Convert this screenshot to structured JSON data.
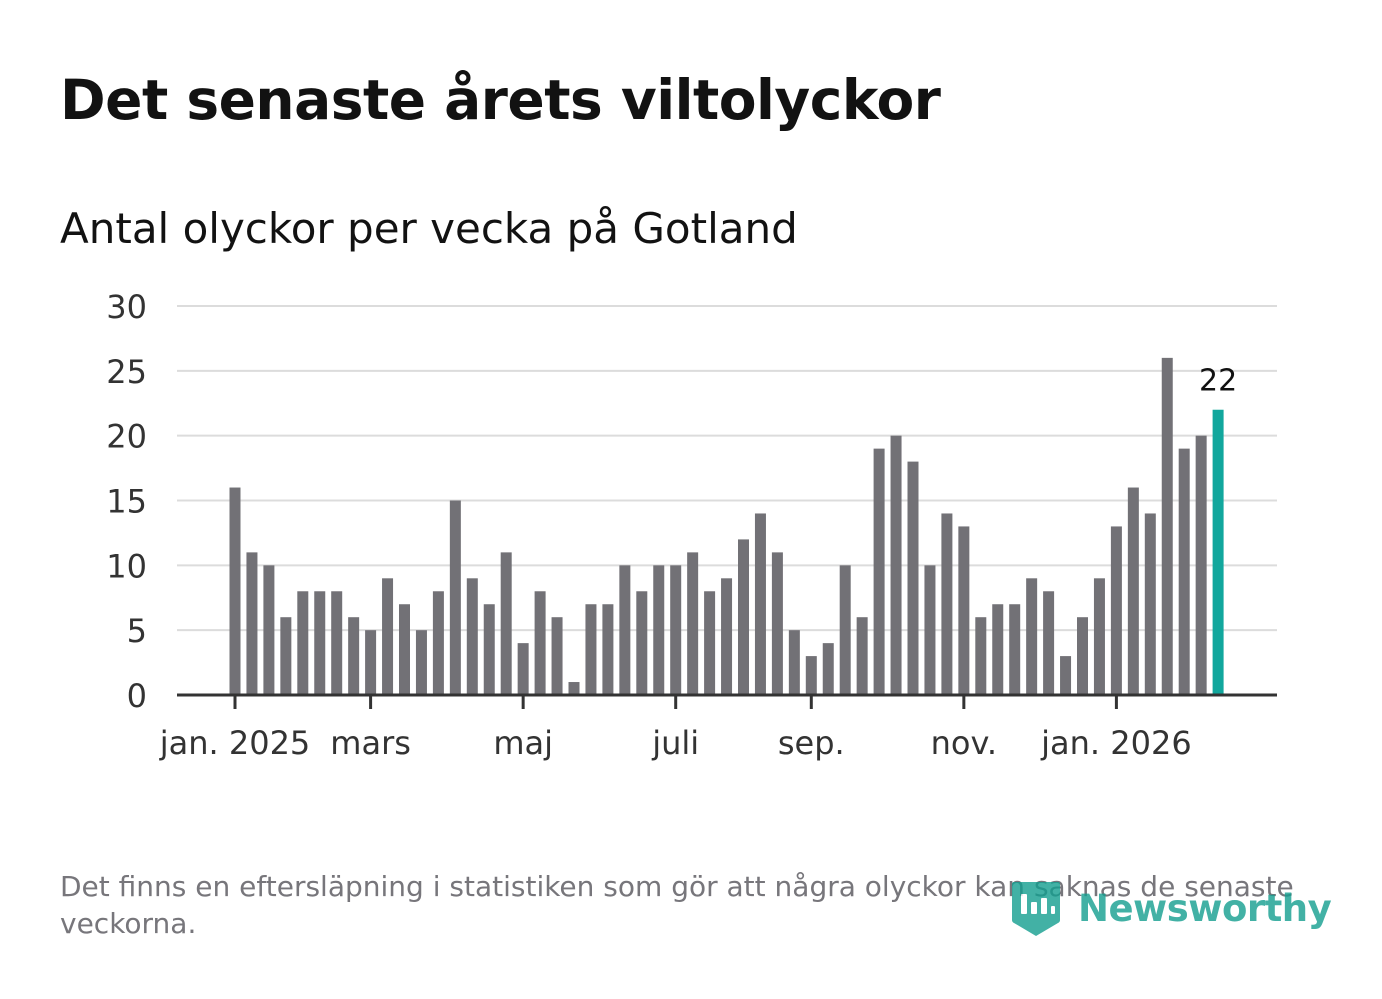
{
  "header": {
    "title": "Det senaste årets viltolyckor",
    "subtitle": "Antal olyckor per vecka på Gotland"
  },
  "footer": {
    "note": "Det finns en eftersläpning i statistiken som gör att några olyckor kan saknas de senaste veckorna.",
    "brand": "Newsworthy"
  },
  "colors": {
    "bar": "#727176",
    "highlight": "#12a79d",
    "grid": "#dcdcdc",
    "axis": "#333333",
    "text": "#333333",
    "brand": "#139e8f"
  },
  "chart_data": {
    "type": "bar",
    "title": "Antal olyckor per vecka på Gotland",
    "xlabel": "",
    "ylabel": "",
    "ylim": [
      0,
      30
    ],
    "yticks": [
      0,
      5,
      10,
      15,
      20,
      25,
      30
    ],
    "grid": true,
    "highlight_last": true,
    "last_label": "22",
    "x_ticks": [
      {
        "label": "jan. 2025",
        "week_index": 0
      },
      {
        "label": "mars",
        "week_index": 8
      },
      {
        "label": "maj",
        "week_index": 17
      },
      {
        "label": "juli",
        "week_index": 26
      },
      {
        "label": "sep.",
        "week_index": 34
      },
      {
        "label": "nov.",
        "week_index": 43
      },
      {
        "label": "jan. 2026",
        "week_index": 52
      }
    ],
    "values": [
      16,
      11,
      10,
      6,
      8,
      8,
      8,
      6,
      5,
      9,
      7,
      5,
      8,
      15,
      9,
      7,
      11,
      4,
      8,
      6,
      1,
      7,
      7,
      10,
      8,
      10,
      10,
      11,
      8,
      9,
      12,
      14,
      11,
      5,
      3,
      4,
      10,
      6,
      19,
      20,
      18,
      10,
      14,
      13,
      6,
      7,
      7,
      9,
      8,
      3,
      6,
      9,
      13,
      16,
      14,
      26,
      19,
      20,
      22
    ]
  }
}
